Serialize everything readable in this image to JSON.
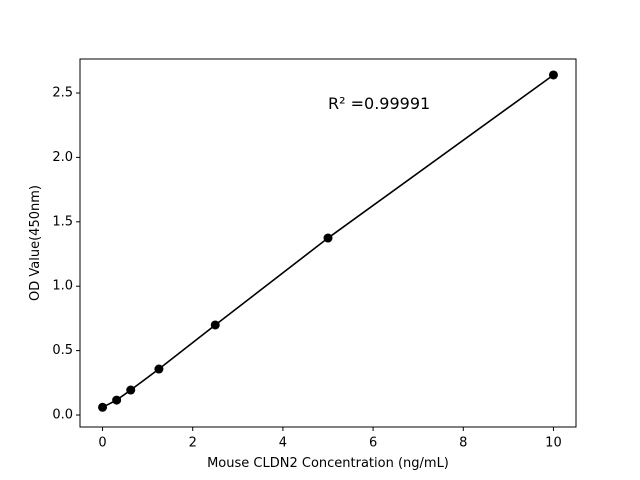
{
  "chart_data": {
    "type": "line",
    "x_label": "Mouse CLDN2 Concentration (ng/mL)",
    "y_label": "OD Value(450nm)",
    "annotation": "R² =0.99991",
    "x": [
      0,
      0.3125,
      0.625,
      1.25,
      2.5,
      5,
      10
    ],
    "series": [
      {
        "color": "#000000",
        "values": [
          0.06,
          0.116,
          0.194,
          0.357,
          0.699,
          1.374,
          2.64
        ]
      }
    ],
    "xlim": [
      -0.5,
      10.5
    ],
    "xticks": [
      0,
      2,
      4,
      6,
      8,
      10
    ],
    "ylim": [
      -0.093,
      2.764
    ],
    "yticks": [
      {
        "value": 0,
        "label": "0.0"
      },
      0.5,
      {
        "value": 1,
        "label": "1.0"
      },
      1.5,
      {
        "value": 2,
        "label": "2.0"
      },
      2.5
    ],
    "grid": false
  }
}
